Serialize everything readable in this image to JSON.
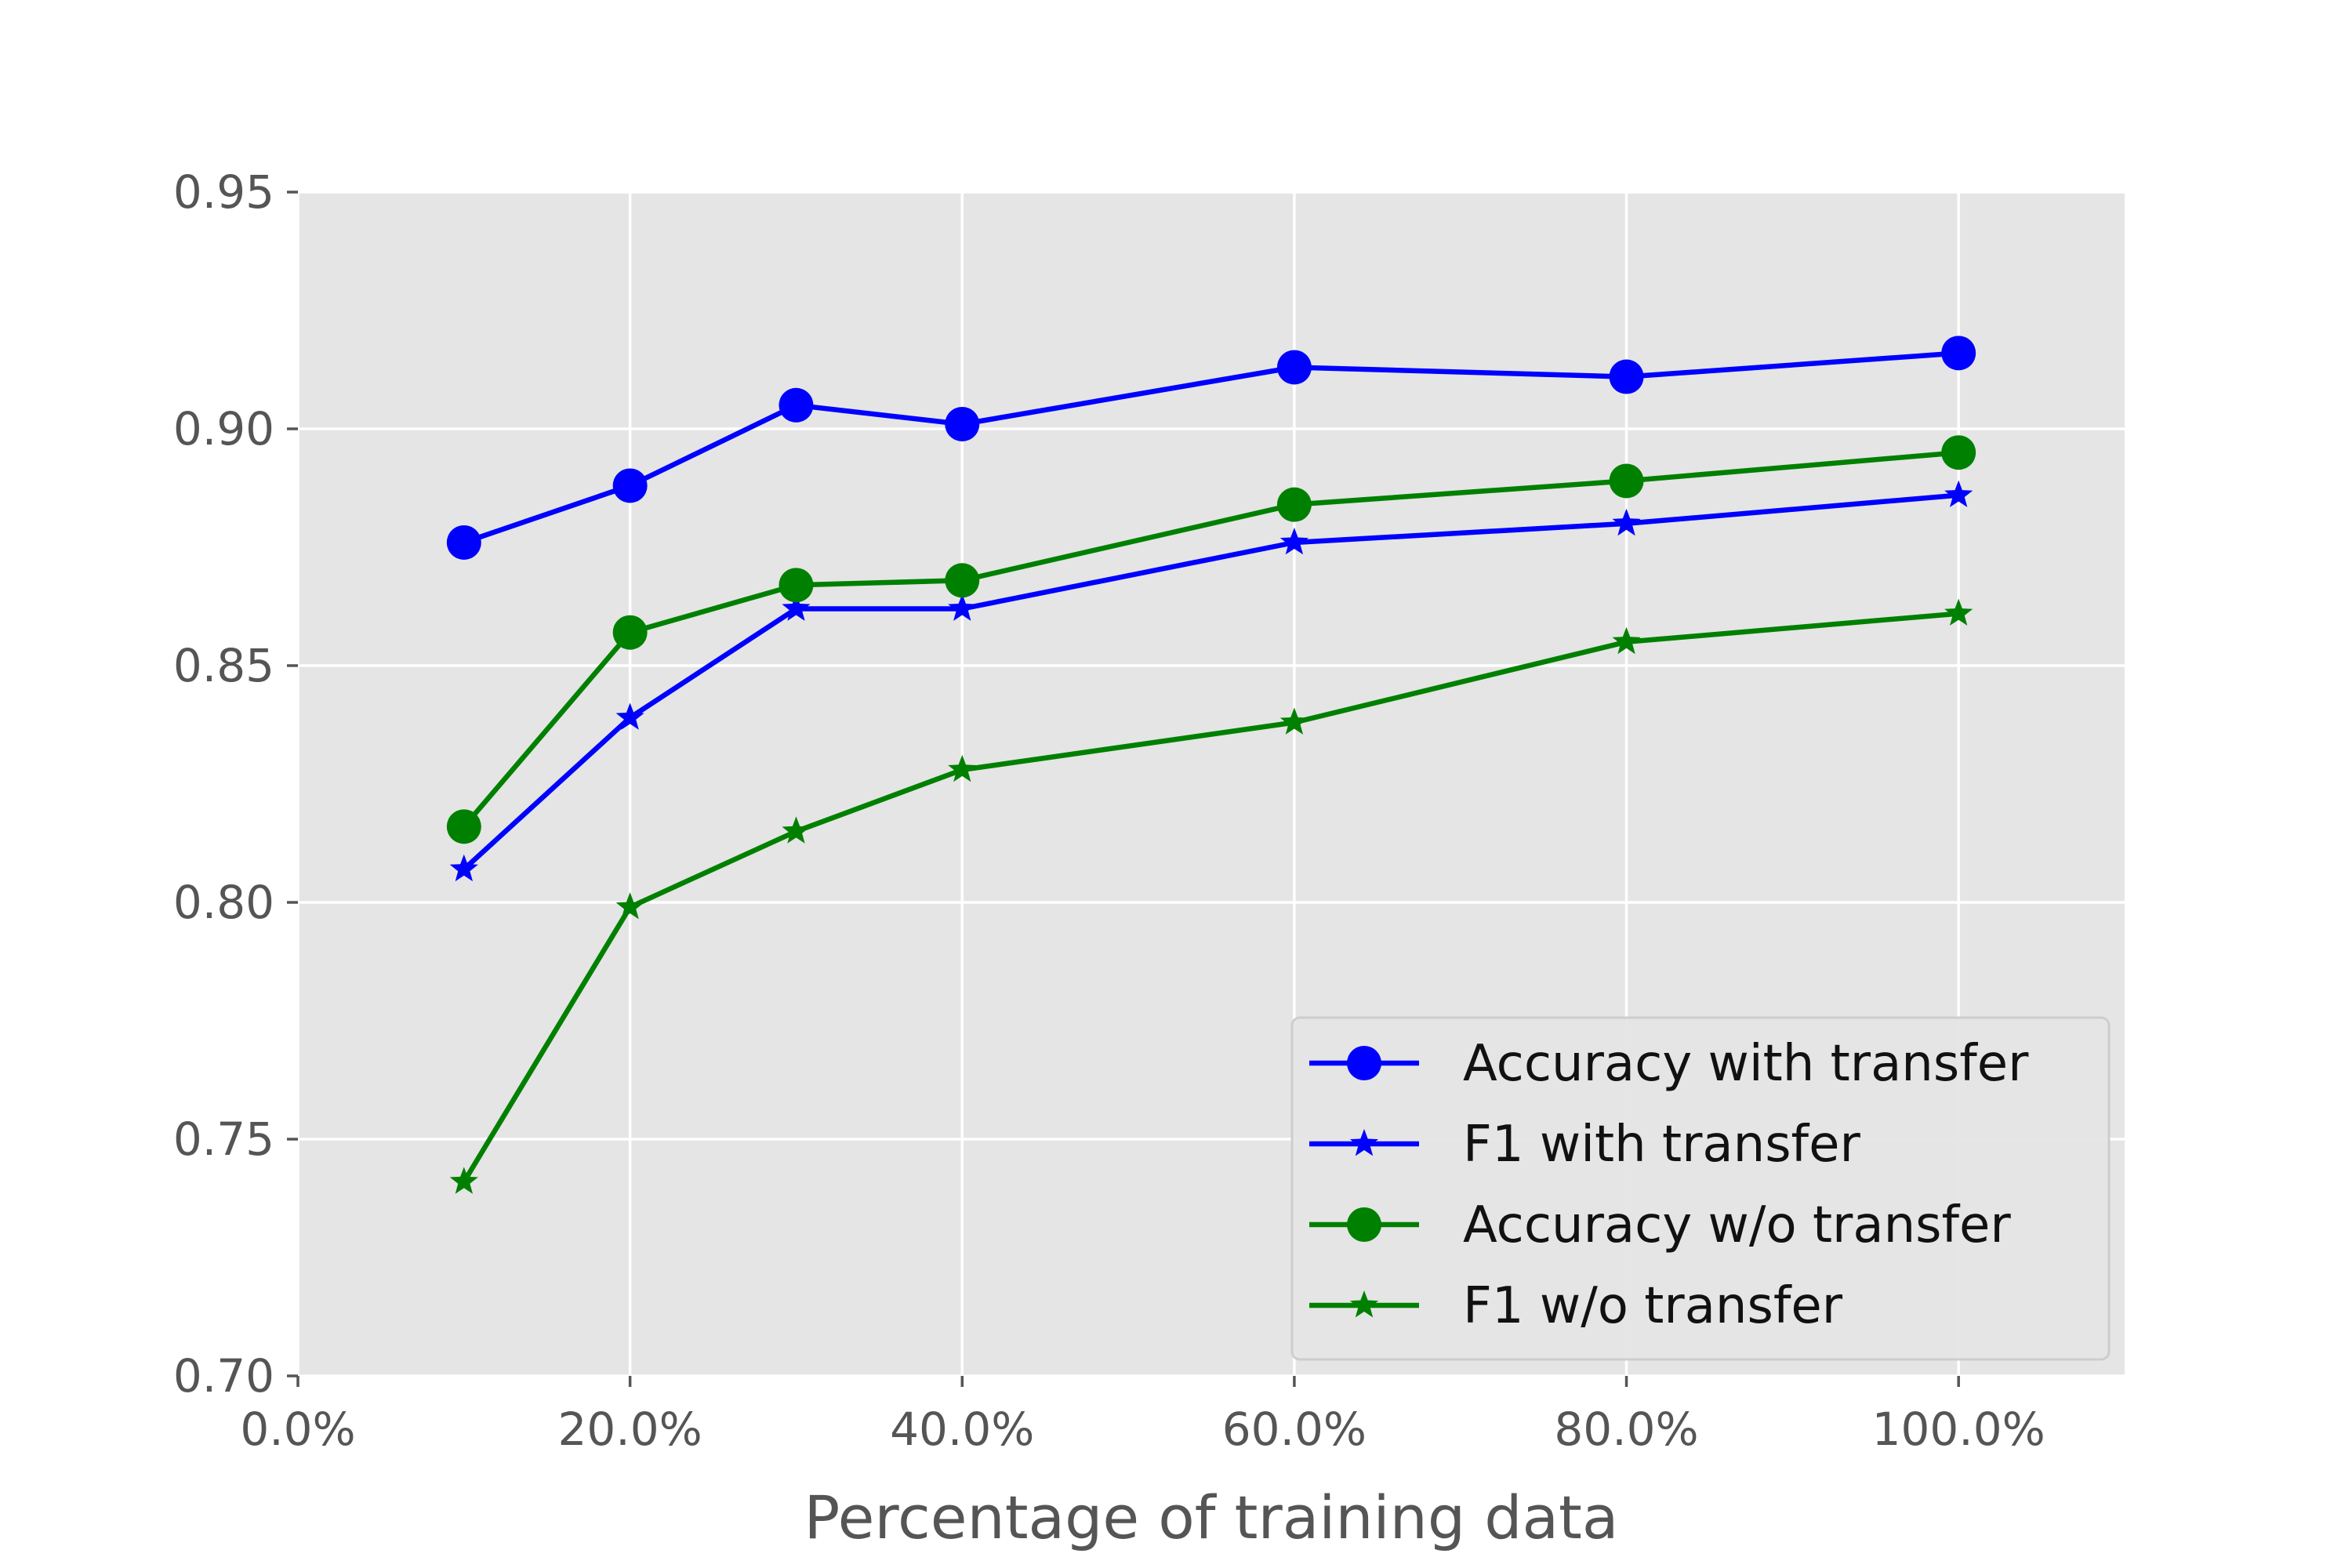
{
  "chart_data": {
    "type": "line",
    "title": "",
    "xlabel": "Percentage of training data",
    "ylabel": "",
    "xlim": [
      0.0,
      1.1
    ],
    "ylim": [
      0.7,
      0.95
    ],
    "x_ticks": [
      0.0,
      0.2,
      0.4,
      0.6,
      0.8,
      1.0
    ],
    "x_tick_labels": [
      "0.0%",
      "20.0%",
      "40.0%",
      "60.0%",
      "80.0%",
      "100.0%"
    ],
    "y_ticks": [
      0.7,
      0.75,
      0.8,
      0.85,
      0.9,
      0.95
    ],
    "y_tick_labels": [
      "0.70",
      "0.75",
      "0.80",
      "0.85",
      "0.90",
      "0.95"
    ],
    "grid": true,
    "legend_position": "bottom-right",
    "x": [
      0.1,
      0.2,
      0.3,
      0.4,
      0.6,
      0.8,
      1.0
    ],
    "series": [
      {
        "name": "Accuracy with transfer",
        "color": "#0000ff",
        "marker": "circle",
        "values": [
          0.876,
          0.888,
          0.905,
          0.901,
          0.913,
          0.911,
          0.916
        ]
      },
      {
        "name": "F1 with transfer",
        "color": "#0000ff",
        "marker": "star",
        "values": [
          0.807,
          0.839,
          0.862,
          0.862,
          0.876,
          0.88,
          0.886
        ]
      },
      {
        "name": "Accuracy w/o transfer",
        "color": "#008000",
        "marker": "circle",
        "values": [
          0.816,
          0.857,
          0.867,
          0.868,
          0.884,
          0.889,
          0.895
        ]
      },
      {
        "name": "F1 w/o transfer",
        "color": "#008000",
        "marker": "star",
        "values": [
          0.741,
          0.799,
          0.815,
          0.828,
          0.838,
          0.855,
          0.861
        ]
      }
    ]
  }
}
